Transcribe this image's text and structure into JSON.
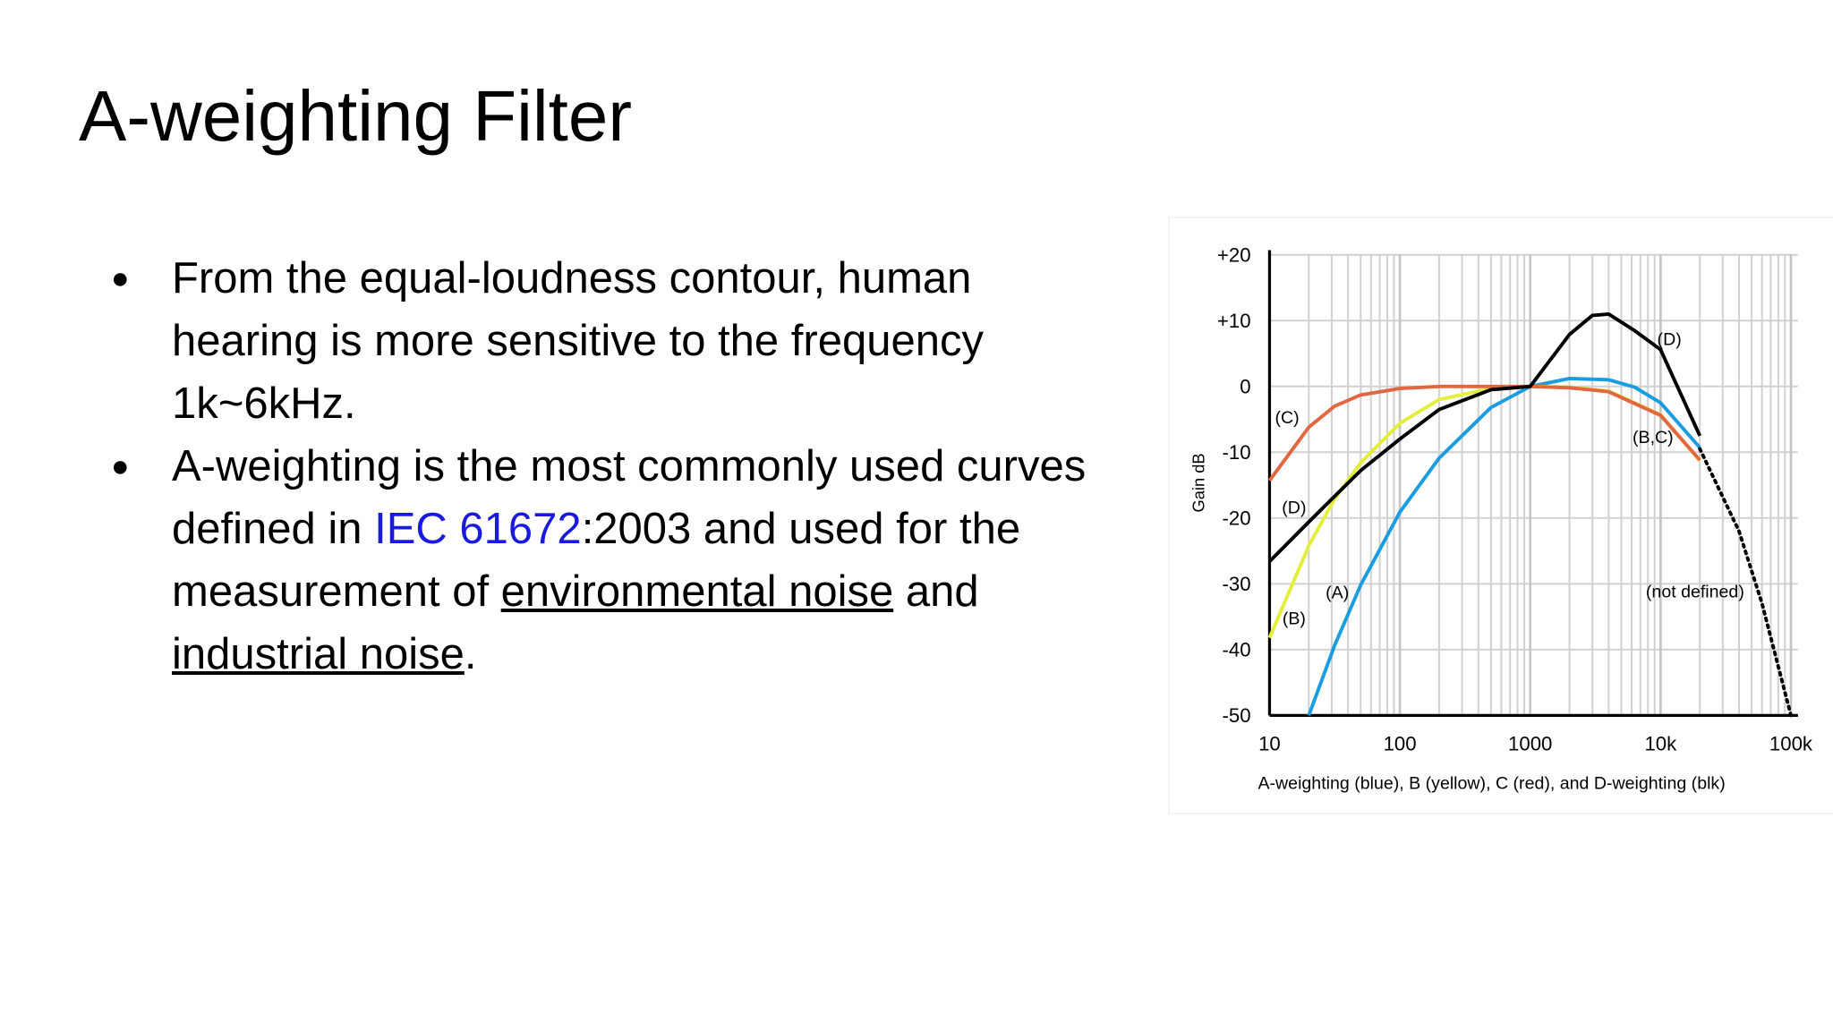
{
  "slide": {
    "title": "A-weighting Filter",
    "bullets": [
      [
        "From the equal-loudness contour, human hearing is more sensitive to the frequency 1k~6kHz."
      ],
      [
        "A-weighting is the most commonly used curves defined in ",
        "IEC 61672",
        ":2003 and used for the measurement of ",
        "environmental noise",
        " and ",
        "industrial noise",
        "."
      ]
    ]
  },
  "chart_data": {
    "type": "line",
    "xscale": "log",
    "grid": true,
    "xlabel": "A-weighting (blue), B (yellow), C (red), and D-weighting (blk)",
    "ylabel": "Gain dB",
    "xlim": [
      10,
      100000
    ],
    "xticks": [
      10,
      100,
      1000,
      {
        "value": 10000,
        "label": "10k"
      },
      {
        "value": 100000,
        "label": "100k"
      }
    ],
    "ylim": [
      -50,
      20
    ],
    "yticks": [
      {
        "value": 20,
        "label": "+20"
      },
      {
        "value": 10,
        "label": "+10"
      },
      0,
      -10,
      -20,
      -30,
      -40,
      -50
    ],
    "series": [
      {
        "name": "(A)",
        "color": "#1a9de0",
        "style": "solid",
        "x": [
          20,
          31.5,
          50,
          100,
          200,
          500,
          1000,
          2000,
          4000,
          6300,
          10000,
          20000
        ],
        "values": [
          -50,
          -39.4,
          -30.2,
          -19.1,
          -10.9,
          -3.2,
          0,
          1.2,
          1,
          -0.1,
          -2.5,
          -9.3
        ]
      },
      {
        "name": "(B)",
        "color": "#e6ee3c",
        "style": "solid",
        "x": [
          10,
          20,
          31.5,
          50,
          100,
          200,
          500,
          1000,
          2000,
          4000,
          10000,
          20000
        ],
        "values": [
          -38.2,
          -24.2,
          -17.1,
          -11.6,
          -5.6,
          -2,
          -0.3,
          0,
          -0.1,
          -0.7,
          -4.3,
          -11.3
        ]
      },
      {
        "name": "(C)",
        "color": "#e0673f",
        "style": "solid",
        "x": [
          10,
          20,
          31.5,
          50,
          100,
          200,
          500,
          1000,
          2000,
          4000,
          10000,
          20000
        ],
        "values": [
          -14.3,
          -6.2,
          -3,
          -1.3,
          -0.3,
          0,
          0,
          0,
          -0.2,
          -0.8,
          -4.4,
          -11.2
        ]
      },
      {
        "name": "(D)",
        "color": "#000000",
        "style": "solid",
        "x": [
          10,
          20,
          31.5,
          50,
          100,
          200,
          500,
          1000,
          2000,
          3000,
          4000,
          6300,
          10000,
          20000
        ],
        "values": [
          -26.6,
          -20.6,
          -16.7,
          -12.8,
          -8,
          -3.5,
          -0.5,
          0,
          7.9,
          10.8,
          11,
          8.5,
          5.6,
          -7.5
        ]
      },
      {
        "name": "(not defined)",
        "color": "#000000",
        "style": "dotted",
        "x": [
          20000,
          40000,
          60000,
          100000
        ],
        "values": [
          -9.5,
          -22,
          -33,
          -50
        ]
      }
    ],
    "annotations": [
      "(B,C)",
      "(D)"
    ]
  }
}
